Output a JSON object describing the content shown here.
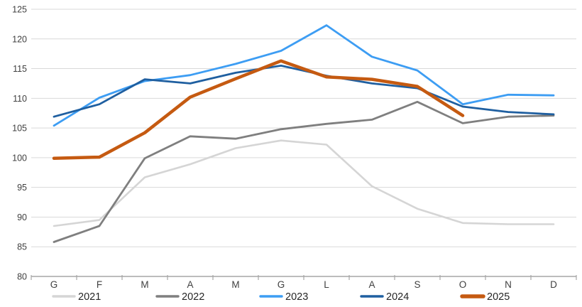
{
  "chart_data": {
    "type": "line",
    "title": "",
    "xlabel": "",
    "ylabel": "",
    "categories": [
      "G",
      "F",
      "M",
      "A",
      "M",
      "G",
      "L",
      "A",
      "S",
      "O",
      "N",
      "D"
    ],
    "series": [
      {
        "name": "2021",
        "color": "#d5d5d5",
        "width": 2.6,
        "values": [
          88.5,
          89.5,
          96.7,
          98.9,
          101.6,
          102.9,
          102.2,
          95.2,
          91.4,
          89.0,
          88.8,
          88.8
        ]
      },
      {
        "name": "2022",
        "color": "#7f7f7f",
        "width": 2.8,
        "values": [
          85.8,
          88.5,
          99.9,
          103.6,
          103.2,
          104.8,
          105.7,
          106.4,
          109.4,
          105.8,
          106.9,
          107.1
        ]
      },
      {
        "name": "2023",
        "color": "#3d9df3",
        "width": 2.8,
        "values": [
          105.4,
          110.1,
          112.9,
          113.9,
          115.8,
          118.0,
          122.3,
          117.0,
          114.7,
          109.0,
          110.6,
          110.5
        ]
      },
      {
        "name": "2024",
        "color": "#1f5fa0",
        "width": 2.8,
        "values": [
          106.9,
          109.0,
          113.2,
          112.5,
          114.3,
          115.5,
          113.8,
          112.5,
          111.7,
          108.6,
          107.7,
          107.3
        ]
      },
      {
        "name": "2025",
        "color": "#c55a11",
        "width": 4.5,
        "values": [
          99.9,
          100.1,
          104.2,
          110.2,
          113.3,
          116.3,
          113.6,
          113.2,
          112.0,
          107.1
        ]
      }
    ],
    "ylim": [
      80,
      125
    ],
    "yticks": [
      80,
      85,
      90,
      95,
      100,
      105,
      110,
      115,
      120,
      125
    ],
    "grid": true,
    "legend_position": "bottom"
  },
  "colors": {
    "background": "#ffffff",
    "grid": "#d9d9d9",
    "axis": "#a6a6a6",
    "tick_label": "#404040",
    "legend_text": "#262626"
  },
  "legend": {
    "items": [
      "2021",
      "2022",
      "2023",
      "2024",
      "2025"
    ]
  }
}
